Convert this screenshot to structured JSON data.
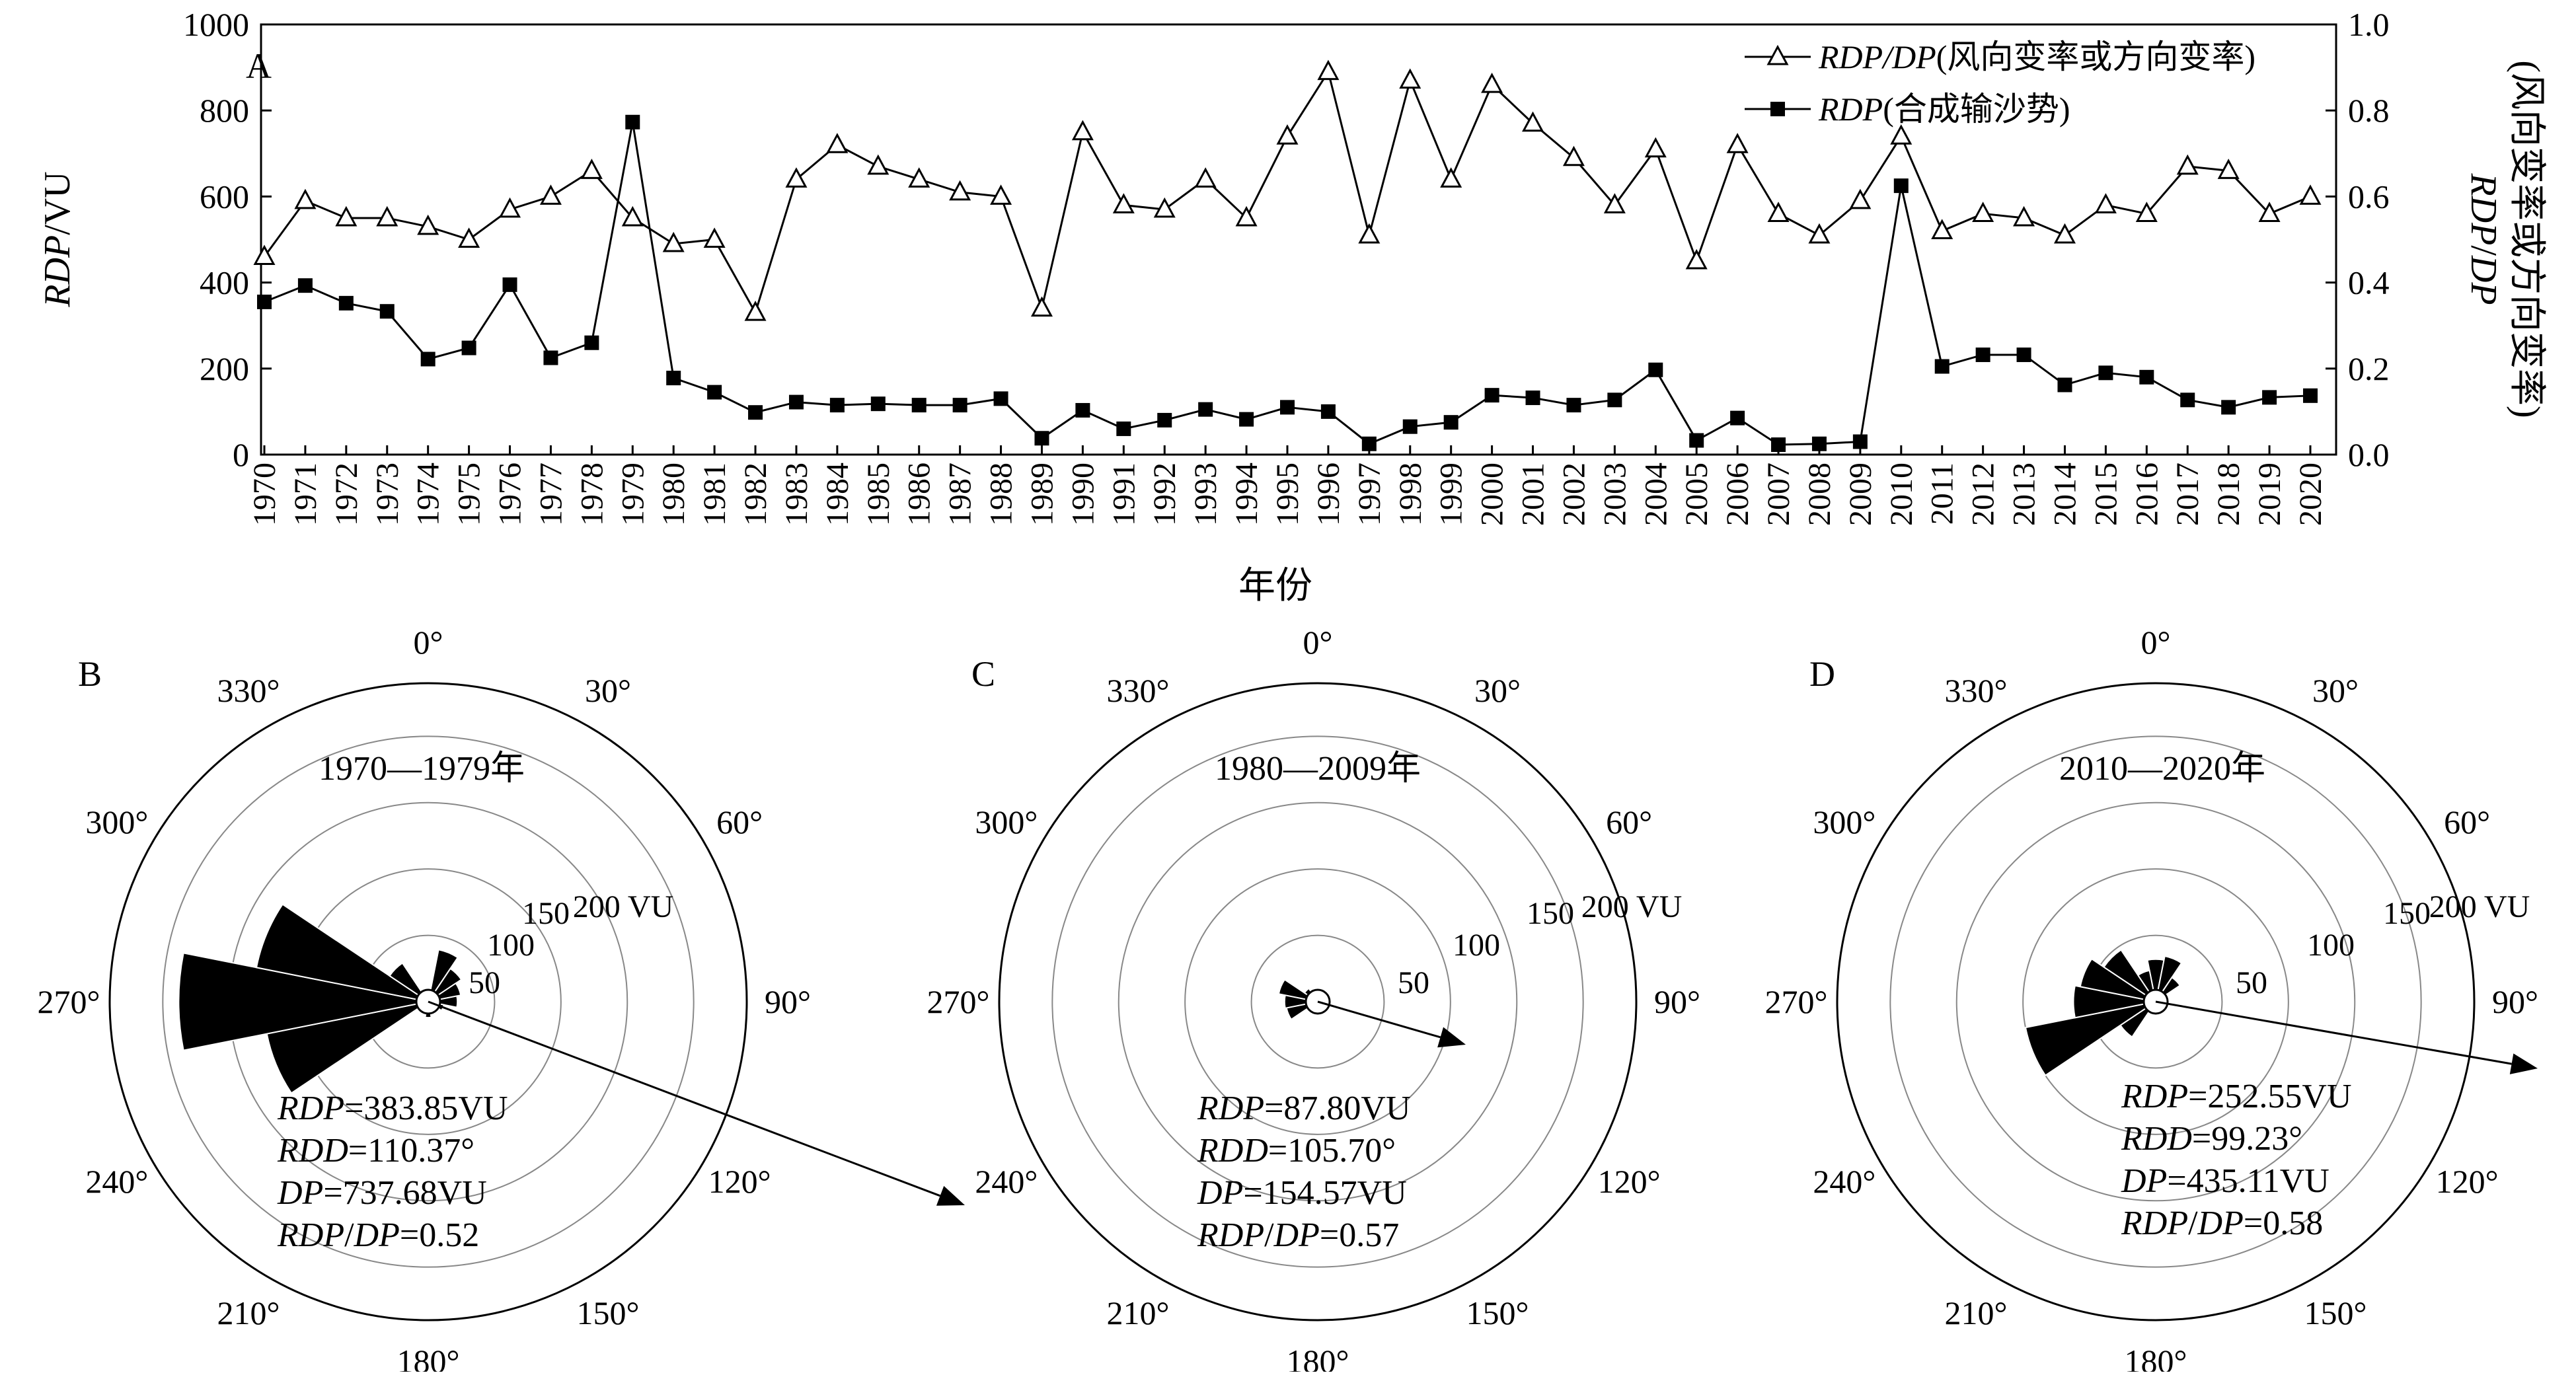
{
  "chart_data": [
    {
      "type": "line",
      "panel_label": "A",
      "xlabel": "年份",
      "ylabel_left": {
        "italic": "RDP",
        "rest": "/VU"
      },
      "ylabel_right_line1": {
        "italic": "RDP",
        "mid": "/",
        "italic2": "DP"
      },
      "ylabel_right_line2": "(风向变率或方向变率)",
      "ylim_left": [
        0,
        1000
      ],
      "yticks_left": [
        "0",
        "200",
        "400",
        "600",
        "800",
        "1000"
      ],
      "ylim_right": [
        0,
        1.0
      ],
      "yticks_right": [
        "0.0",
        "0.2",
        "0.4",
        "0.6",
        "0.8",
        "1.0"
      ],
      "x": [
        "1970",
        "1971",
        "1972",
        "1973",
        "1974",
        "1975",
        "1976",
        "1977",
        "1978",
        "1979",
        "1980",
        "1981",
        "1982",
        "1983",
        "1984",
        "1985",
        "1986",
        "1987",
        "1988",
        "1989",
        "1990",
        "1991",
        "1992",
        "1993",
        "1994",
        "1995",
        "1996",
        "1997",
        "1998",
        "1999",
        "2000",
        "2001",
        "2002",
        "2003",
        "2004",
        "2005",
        "2006",
        "2007",
        "2008",
        "2009",
        "2010",
        "2011",
        "2012",
        "2013",
        "2014",
        "2015",
        "2016",
        "2017",
        "2018",
        "2019",
        "2020"
      ],
      "legend_placement": "top-right",
      "series": [
        {
          "name": "RDP/DP(风向变率或方向变率)",
          "legend_italic": "RDP/DP",
          "legend_rest": "(风向变率或方向变率)",
          "axis": "right",
          "marker": "open-triangle",
          "values": [
            0.46,
            0.59,
            0.55,
            0.55,
            0.53,
            0.5,
            0.57,
            0.6,
            0.66,
            0.55,
            0.49,
            0.5,
            0.33,
            0.64,
            0.72,
            0.67,
            0.64,
            0.61,
            0.6,
            0.34,
            0.75,
            0.58,
            0.57,
            0.64,
            0.55,
            0.74,
            0.89,
            0.51,
            0.87,
            0.64,
            0.86,
            0.77,
            0.69,
            0.58,
            0.71,
            0.45,
            0.72,
            0.56,
            0.51,
            0.59,
            0.74,
            0.52,
            0.56,
            0.55,
            0.51,
            0.58,
            0.56,
            0.67,
            0.66,
            0.56,
            0.6
          ]
        },
        {
          "name": "RDP(合成输沙势)",
          "legend_italic": "RDP",
          "legend_rest": "(合成输沙势)",
          "axis": "left",
          "marker": "filled-square",
          "values": [
            355,
            393,
            352,
            333,
            222,
            248,
            395,
            225,
            260,
            773,
            178,
            145,
            98,
            122,
            115,
            118,
            115,
            115,
            130,
            38,
            103,
            60,
            80,
            105,
            82,
            110,
            100,
            25,
            65,
            75,
            138,
            132,
            115,
            127,
            197,
            33,
            85,
            23,
            25,
            30,
            625,
            205,
            232,
            232,
            162,
            190,
            180,
            127,
            110,
            133,
            137
          ]
        }
      ]
    },
    {
      "type": "polar",
      "panel_label": "B",
      "period": "1970—1979年",
      "angle_labels": [
        "0°",
        "30°",
        "60°",
        "90°",
        "120°",
        "150°",
        "180°",
        "210°",
        "240°",
        "270°",
        "300°",
        "330°"
      ],
      "radial_ticks": [
        "50",
        "100",
        "150",
        "200 VU"
      ],
      "radial_values": [
        50,
        100,
        150,
        200
      ],
      "sector_width_deg": 22.5,
      "sectors_deg": [
        0,
        22.5,
        45,
        67.5,
        90,
        112.5,
        135,
        157.5,
        180,
        202.5,
        225,
        247.5,
        270,
        292.5,
        315,
        337.5
      ],
      "sector_values": [
        10,
        40,
        30,
        25,
        22,
        12,
        8,
        6,
        12,
        8,
        8,
        124,
        188,
        132,
        35,
        10
      ],
      "rdd_deg": 110.37,
      "stats": [
        {
          "italic": "RDP",
          "rest": "=383.85VU"
        },
        {
          "italic": "RDD",
          "rest": "=110.37°"
        },
        {
          "italic": "DP",
          "rest": "=737.68VU"
        },
        {
          "italic": "RDP",
          "mid": "/",
          "italic2": "DP",
          "rest": "=0.52"
        }
      ]
    },
    {
      "type": "polar",
      "panel_label": "C",
      "period": "1980—2009年",
      "angle_labels": [
        "0°",
        "30°",
        "60°",
        "90°",
        "120°",
        "150°",
        "180°",
        "210°",
        "240°",
        "270°",
        "300°",
        "330°"
      ],
      "radial_ticks": [
        "50",
        "100",
        "150",
        "200 VU"
      ],
      "radial_values": [
        50,
        100,
        150,
        200
      ],
      "sector_width_deg": 22.5,
      "sectors_deg": [
        0,
        22.5,
        45,
        67.5,
        90,
        112.5,
        135,
        157.5,
        180,
        202.5,
        225,
        247.5,
        270,
        292.5,
        315,
        337.5
      ],
      "sector_values": [
        6,
        7,
        7,
        7,
        7,
        7,
        6,
        6,
        6,
        6,
        6,
        24,
        25,
        30,
        12,
        6
      ],
      "rdd_deg": 105.7,
      "stats": [
        {
          "italic": "RDP",
          "rest": "=87.80VU"
        },
        {
          "italic": "RDD",
          "rest": "=105.70°"
        },
        {
          "italic": "DP",
          "rest": "=154.57VU"
        },
        {
          "italic": "RDP",
          "mid": "/",
          "italic2": "DP",
          "rest": "=0.57"
        }
      ]
    },
    {
      "type": "polar",
      "panel_label": "D",
      "period": "2010—2020年",
      "angle_labels": [
        "0°",
        "30°",
        "60°",
        "90°",
        "120°",
        "150°",
        "180°",
        "210°",
        "240°",
        "270°",
        "300°",
        "330°"
      ],
      "radial_ticks": [
        "50",
        "100",
        "150",
        "200 VU"
      ],
      "radial_values": [
        50,
        100,
        150,
        200
      ],
      "sector_width_deg": 22.5,
      "sectors_deg": [
        0,
        22.5,
        45,
        67.5,
        90,
        112.5,
        135,
        157.5,
        180,
        202.5,
        225,
        247.5,
        270,
        292.5,
        315,
        337.5
      ],
      "sector_values": [
        32,
        35,
        22,
        10,
        8,
        8,
        8,
        8,
        8,
        8,
        32,
        100,
        62,
        58,
        47,
        24
      ],
      "rdd_deg": 99.23,
      "stats": [
        {
          "italic": "RDP",
          "rest": "=252.55VU"
        },
        {
          "italic": "RDD",
          "rest": "=99.23°"
        },
        {
          "italic": "DP",
          "rest": "=435.11VU"
        },
        {
          "italic": "RDP",
          "mid": "/",
          "italic2": "DP",
          "rest": "=0.58"
        }
      ]
    }
  ]
}
